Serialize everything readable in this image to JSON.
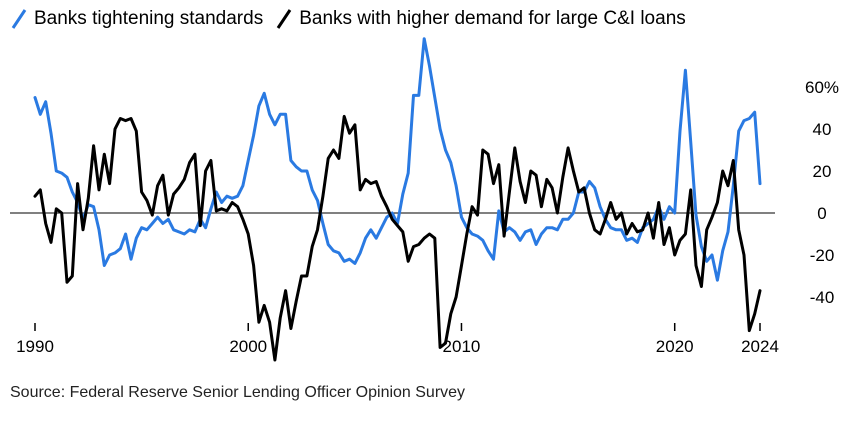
{
  "legend": {
    "items": [
      {
        "label": "Banks tightening standards",
        "color": "#2a7ae2"
      },
      {
        "label": "Banks with higher demand for large C&I loans",
        "color": "#000000"
      }
    ]
  },
  "source": "Source: Federal Reserve Senior Lending Officer Opinion Survey",
  "chart_data": {
    "type": "line",
    "xlim": [
      1990,
      2024.25
    ],
    "ylim": [
      -55,
      75
    ],
    "x_ticks": [
      {
        "value": 1990,
        "label": "1990"
      },
      {
        "value": 2000,
        "label": "2000"
      },
      {
        "value": 2010,
        "label": "2010"
      },
      {
        "value": 2020,
        "label": "2020"
      },
      {
        "value": 2024,
        "label": "2024"
      }
    ],
    "y_ticks": [
      {
        "value": 60,
        "label": "60%"
      },
      {
        "value": 40,
        "label": "40"
      },
      {
        "value": 20,
        "label": "20"
      },
      {
        "value": 0,
        "label": "0"
      },
      {
        "value": -20,
        "label": "-20"
      },
      {
        "value": -40,
        "label": "-40"
      }
    ],
    "zero_line": true,
    "series": [
      {
        "name": "Banks tightening standards",
        "color": "#2a7ae2",
        "points": [
          [
            1990.0,
            55
          ],
          [
            1990.25,
            47
          ],
          [
            1990.5,
            53
          ],
          [
            1990.75,
            38
          ],
          [
            1991.0,
            20
          ],
          [
            1991.25,
            19
          ],
          [
            1991.5,
            17
          ],
          [
            1991.75,
            10
          ],
          [
            1992.0,
            5
          ],
          [
            1992.25,
            -3
          ],
          [
            1992.5,
            4
          ],
          [
            1992.75,
            3
          ],
          [
            1993.0,
            -8
          ],
          [
            1993.25,
            -25
          ],
          [
            1993.5,
            -20
          ],
          [
            1993.75,
            -19
          ],
          [
            1994.0,
            -17
          ],
          [
            1994.25,
            -10
          ],
          [
            1994.5,
            -22
          ],
          [
            1994.75,
            -12
          ],
          [
            1995.0,
            -7
          ],
          [
            1995.25,
            -8
          ],
          [
            1995.5,
            -5
          ],
          [
            1995.75,
            -2
          ],
          [
            1996.0,
            -5
          ],
          [
            1996.25,
            -3
          ],
          [
            1996.5,
            -8
          ],
          [
            1996.75,
            -9
          ],
          [
            1997.0,
            -10
          ],
          [
            1997.25,
            -8
          ],
          [
            1997.5,
            -9
          ],
          [
            1997.75,
            -3
          ],
          [
            1998.0,
            -7
          ],
          [
            1998.25,
            2
          ],
          [
            1998.5,
            10
          ],
          [
            1998.75,
            5
          ],
          [
            1999.0,
            8
          ],
          [
            1999.25,
            7
          ],
          [
            1999.5,
            8
          ],
          [
            1999.75,
            13
          ],
          [
            2000.0,
            25
          ],
          [
            2000.25,
            37
          ],
          [
            2000.5,
            51
          ],
          [
            2000.75,
            57
          ],
          [
            2001.0,
            47
          ],
          [
            2001.25,
            42
          ],
          [
            2001.5,
            47
          ],
          [
            2001.75,
            47
          ],
          [
            2002.0,
            25
          ],
          [
            2002.25,
            22
          ],
          [
            2002.5,
            20
          ],
          [
            2002.75,
            20
          ],
          [
            2003.0,
            11
          ],
          [
            2003.25,
            6
          ],
          [
            2003.5,
            -5
          ],
          [
            2003.75,
            -15
          ],
          [
            2004.0,
            -18
          ],
          [
            2004.25,
            -19
          ],
          [
            2004.5,
            -23
          ],
          [
            2004.75,
            -22
          ],
          [
            2005.0,
            -24
          ],
          [
            2005.25,
            -19
          ],
          [
            2005.5,
            -12
          ],
          [
            2005.75,
            -8
          ],
          [
            2006.0,
            -12
          ],
          [
            2006.25,
            -7
          ],
          [
            2006.5,
            -2
          ],
          [
            2006.75,
            0
          ],
          [
            2007.0,
            -5
          ],
          [
            2007.25,
            9
          ],
          [
            2007.5,
            19
          ],
          [
            2007.75,
            56
          ],
          [
            2008.0,
            56
          ],
          [
            2008.25,
            83
          ],
          [
            2008.5,
            70
          ],
          [
            2008.75,
            55
          ],
          [
            2009.0,
            40
          ],
          [
            2009.25,
            30
          ],
          [
            2009.5,
            24
          ],
          [
            2009.75,
            13
          ],
          [
            2010.0,
            -2
          ],
          [
            2010.25,
            -7
          ],
          [
            2010.5,
            -10
          ],
          [
            2010.75,
            -11
          ],
          [
            2011.0,
            -13
          ],
          [
            2011.25,
            -18
          ],
          [
            2011.5,
            -22
          ],
          [
            2011.75,
            1
          ],
          [
            2012.0,
            -9
          ],
          [
            2012.25,
            -7
          ],
          [
            2012.5,
            -9
          ],
          [
            2012.75,
            -13
          ],
          [
            2013.0,
            -9
          ],
          [
            2013.25,
            -8
          ],
          [
            2013.5,
            -15
          ],
          [
            2013.75,
            -10
          ],
          [
            2014.0,
            -7
          ],
          [
            2014.25,
            -7
          ],
          [
            2014.5,
            -8
          ],
          [
            2014.75,
            -3
          ],
          [
            2015.0,
            -3
          ],
          [
            2015.25,
            0
          ],
          [
            2015.5,
            10
          ],
          [
            2015.75,
            10
          ],
          [
            2016.0,
            15
          ],
          [
            2016.25,
            12
          ],
          [
            2016.5,
            3
          ],
          [
            2016.75,
            -3
          ],
          [
            2017.0,
            -7
          ],
          [
            2017.25,
            -8
          ],
          [
            2017.5,
            -8
          ],
          [
            2017.75,
            -13
          ],
          [
            2018.0,
            -12
          ],
          [
            2018.25,
            -14
          ],
          [
            2018.5,
            -7
          ],
          [
            2018.75,
            -5
          ],
          [
            2019.0,
            -3
          ],
          [
            2019.25,
            3
          ],
          [
            2019.5,
            -3
          ],
          [
            2019.75,
            3
          ],
          [
            2020.0,
            0
          ],
          [
            2020.25,
            39
          ],
          [
            2020.5,
            68
          ],
          [
            2020.75,
            34
          ],
          [
            2021.0,
            -1
          ],
          [
            2021.25,
            -16
          ],
          [
            2021.5,
            -23
          ],
          [
            2021.75,
            -20
          ],
          [
            2022.0,
            -32
          ],
          [
            2022.25,
            -18
          ],
          [
            2022.5,
            -9
          ],
          [
            2022.75,
            13
          ],
          [
            2023.0,
            39
          ],
          [
            2023.25,
            44
          ],
          [
            2023.5,
            45
          ],
          [
            2023.75,
            48
          ],
          [
            2024.0,
            14
          ]
        ]
      },
      {
        "name": "Banks with higher demand for large C&I loans",
        "color": "#000000",
        "points": [
          [
            1990.0,
            8
          ],
          [
            1990.25,
            11
          ],
          [
            1990.5,
            -5
          ],
          [
            1990.75,
            -14
          ],
          [
            1991.0,
            2
          ],
          [
            1991.25,
            0
          ],
          [
            1991.5,
            -33
          ],
          [
            1991.75,
            -30
          ],
          [
            1992.0,
            14
          ],
          [
            1992.25,
            -8
          ],
          [
            1992.5,
            7
          ],
          [
            1992.75,
            32
          ],
          [
            1993.0,
            11
          ],
          [
            1993.25,
            28
          ],
          [
            1993.5,
            14
          ],
          [
            1993.75,
            40
          ],
          [
            1994.0,
            45
          ],
          [
            1994.25,
            44
          ],
          [
            1994.5,
            45
          ],
          [
            1994.75,
            39
          ],
          [
            1995.0,
            10
          ],
          [
            1995.25,
            6
          ],
          [
            1995.5,
            -1
          ],
          [
            1995.75,
            13
          ],
          [
            1996.0,
            18
          ],
          [
            1996.25,
            -1
          ],
          [
            1996.5,
            9
          ],
          [
            1996.75,
            12
          ],
          [
            1997.0,
            16
          ],
          [
            1997.25,
            24
          ],
          [
            1997.5,
            28
          ],
          [
            1997.75,
            -6
          ],
          [
            1998.0,
            20
          ],
          [
            1998.25,
            25
          ],
          [
            1998.5,
            1
          ],
          [
            1998.75,
            2
          ],
          [
            1999.0,
            1
          ],
          [
            1999.25,
            5
          ],
          [
            1999.5,
            3
          ],
          [
            1999.75,
            -3
          ],
          [
            2000.0,
            -10
          ],
          [
            2000.25,
            -25
          ],
          [
            2000.5,
            -52
          ],
          [
            2000.75,
            -44
          ],
          [
            2001.0,
            -52
          ],
          [
            2001.25,
            -70
          ],
          [
            2001.5,
            -50
          ],
          [
            2001.75,
            -37
          ],
          [
            2002.0,
            -55
          ],
          [
            2002.25,
            -42
          ],
          [
            2002.5,
            -30
          ],
          [
            2002.75,
            -30
          ],
          [
            2003.0,
            -16
          ],
          [
            2003.25,
            -8
          ],
          [
            2003.5,
            8
          ],
          [
            2003.75,
            26
          ],
          [
            2004.0,
            30
          ],
          [
            2004.25,
            26
          ],
          [
            2004.5,
            46
          ],
          [
            2004.75,
            38
          ],
          [
            2005.0,
            42
          ],
          [
            2005.25,
            11
          ],
          [
            2005.5,
            16
          ],
          [
            2005.75,
            14
          ],
          [
            2006.0,
            15
          ],
          [
            2006.25,
            8
          ],
          [
            2006.5,
            3
          ],
          [
            2006.75,
            -3
          ],
          [
            2007.0,
            -6
          ],
          [
            2007.25,
            -9
          ],
          [
            2007.5,
            -23
          ],
          [
            2007.75,
            -16
          ],
          [
            2008.0,
            -15
          ],
          [
            2008.25,
            -12
          ],
          [
            2008.5,
            -10
          ],
          [
            2008.75,
            -12
          ],
          [
            2009.0,
            -64
          ],
          [
            2009.25,
            -62
          ],
          [
            2009.5,
            -48
          ],
          [
            2009.75,
            -40
          ],
          [
            2010.0,
            -25
          ],
          [
            2010.25,
            -10
          ],
          [
            2010.5,
            3
          ],
          [
            2010.75,
            -1
          ],
          [
            2011.0,
            30
          ],
          [
            2011.25,
            28
          ],
          [
            2011.5,
            14
          ],
          [
            2011.75,
            23
          ],
          [
            2012.0,
            -11
          ],
          [
            2012.25,
            10
          ],
          [
            2012.5,
            31
          ],
          [
            2012.75,
            15
          ],
          [
            2013.0,
            5
          ],
          [
            2013.25,
            20
          ],
          [
            2013.5,
            18
          ],
          [
            2013.75,
            3
          ],
          [
            2014.0,
            16
          ],
          [
            2014.25,
            12
          ],
          [
            2014.5,
            0
          ],
          [
            2014.75,
            17
          ],
          [
            2015.0,
            31
          ],
          [
            2015.25,
            20
          ],
          [
            2015.5,
            10
          ],
          [
            2015.75,
            12
          ],
          [
            2016.0,
            0
          ],
          [
            2016.25,
            -8
          ],
          [
            2016.5,
            -10
          ],
          [
            2016.75,
            -3
          ],
          [
            2017.0,
            5
          ],
          [
            2017.25,
            -3
          ],
          [
            2017.5,
            0
          ],
          [
            2017.75,
            -10
          ],
          [
            2018.0,
            -5
          ],
          [
            2018.25,
            -9
          ],
          [
            2018.5,
            -8
          ],
          [
            2018.75,
            0
          ],
          [
            2019.0,
            -12
          ],
          [
            2019.25,
            5
          ],
          [
            2019.5,
            -15
          ],
          [
            2019.75,
            -7
          ],
          [
            2020.0,
            -20
          ],
          [
            2020.25,
            -13
          ],
          [
            2020.5,
            -10
          ],
          [
            2020.75,
            11
          ],
          [
            2021.0,
            -25
          ],
          [
            2021.25,
            -35
          ],
          [
            2021.5,
            -8
          ],
          [
            2021.75,
            -2
          ],
          [
            2022.0,
            5
          ],
          [
            2022.25,
            20
          ],
          [
            2022.5,
            13
          ],
          [
            2022.75,
            25
          ],
          [
            2023.0,
            -8
          ],
          [
            2023.25,
            -20
          ],
          [
            2023.5,
            -56
          ],
          [
            2023.75,
            -48
          ],
          [
            2024.0,
            -37
          ]
        ]
      }
    ]
  }
}
